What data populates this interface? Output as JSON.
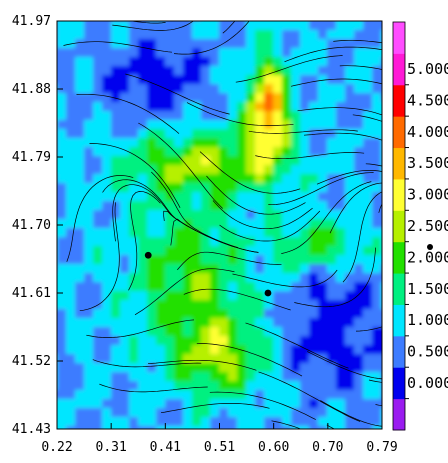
{
  "chart_data": {
    "type": "heatmap",
    "title": "",
    "xlabel": "",
    "ylabel": "",
    "xlim": [
      0.22,
      0.79
    ],
    "ylim": [
      41.43,
      41.97
    ],
    "x_ticks": [
      "0.22",
      "0.31",
      "0.41",
      "0.51",
      "0.60",
      "0.70",
      "0.79"
    ],
    "y_ticks": [
      "41.97",
      "41.88",
      "41.79",
      "41.70",
      "41.61",
      "41.52",
      "41.43"
    ],
    "overlay": "streamlines",
    "colorbar": {
      "levels": [
        {
          "label": "",
          "color": "#9a1cf0"
        },
        {
          "label": "0.000",
          "color": "#0000ee"
        },
        {
          "label": "0.500",
          "color": "#3d7cff"
        },
        {
          "label": "1.000",
          "color": "#00e6ff"
        },
        {
          "label": "1.500",
          "color": "#00f080"
        },
        {
          "label": "2.000",
          "color": "#22e000"
        },
        {
          "label": "2.500",
          "color": "#b6f000"
        },
        {
          "label": "3.000",
          "color": "#ffff33"
        },
        {
          "label": "3.500",
          "color": "#ffb800"
        },
        {
          "label": "4.000",
          "color": "#ff6a00"
        },
        {
          "label": "4.500",
          "color": "#ff0000"
        },
        {
          "label": "5.000",
          "color": "#ff1ad6"
        },
        {
          "label": "",
          "color": "#ff4dff"
        }
      ]
    },
    "markers": [
      {
        "x": 0.38,
        "y": 41.66
      },
      {
        "x": 0.59,
        "y": 41.61
      }
    ],
    "grid": false,
    "legend": "right"
  }
}
